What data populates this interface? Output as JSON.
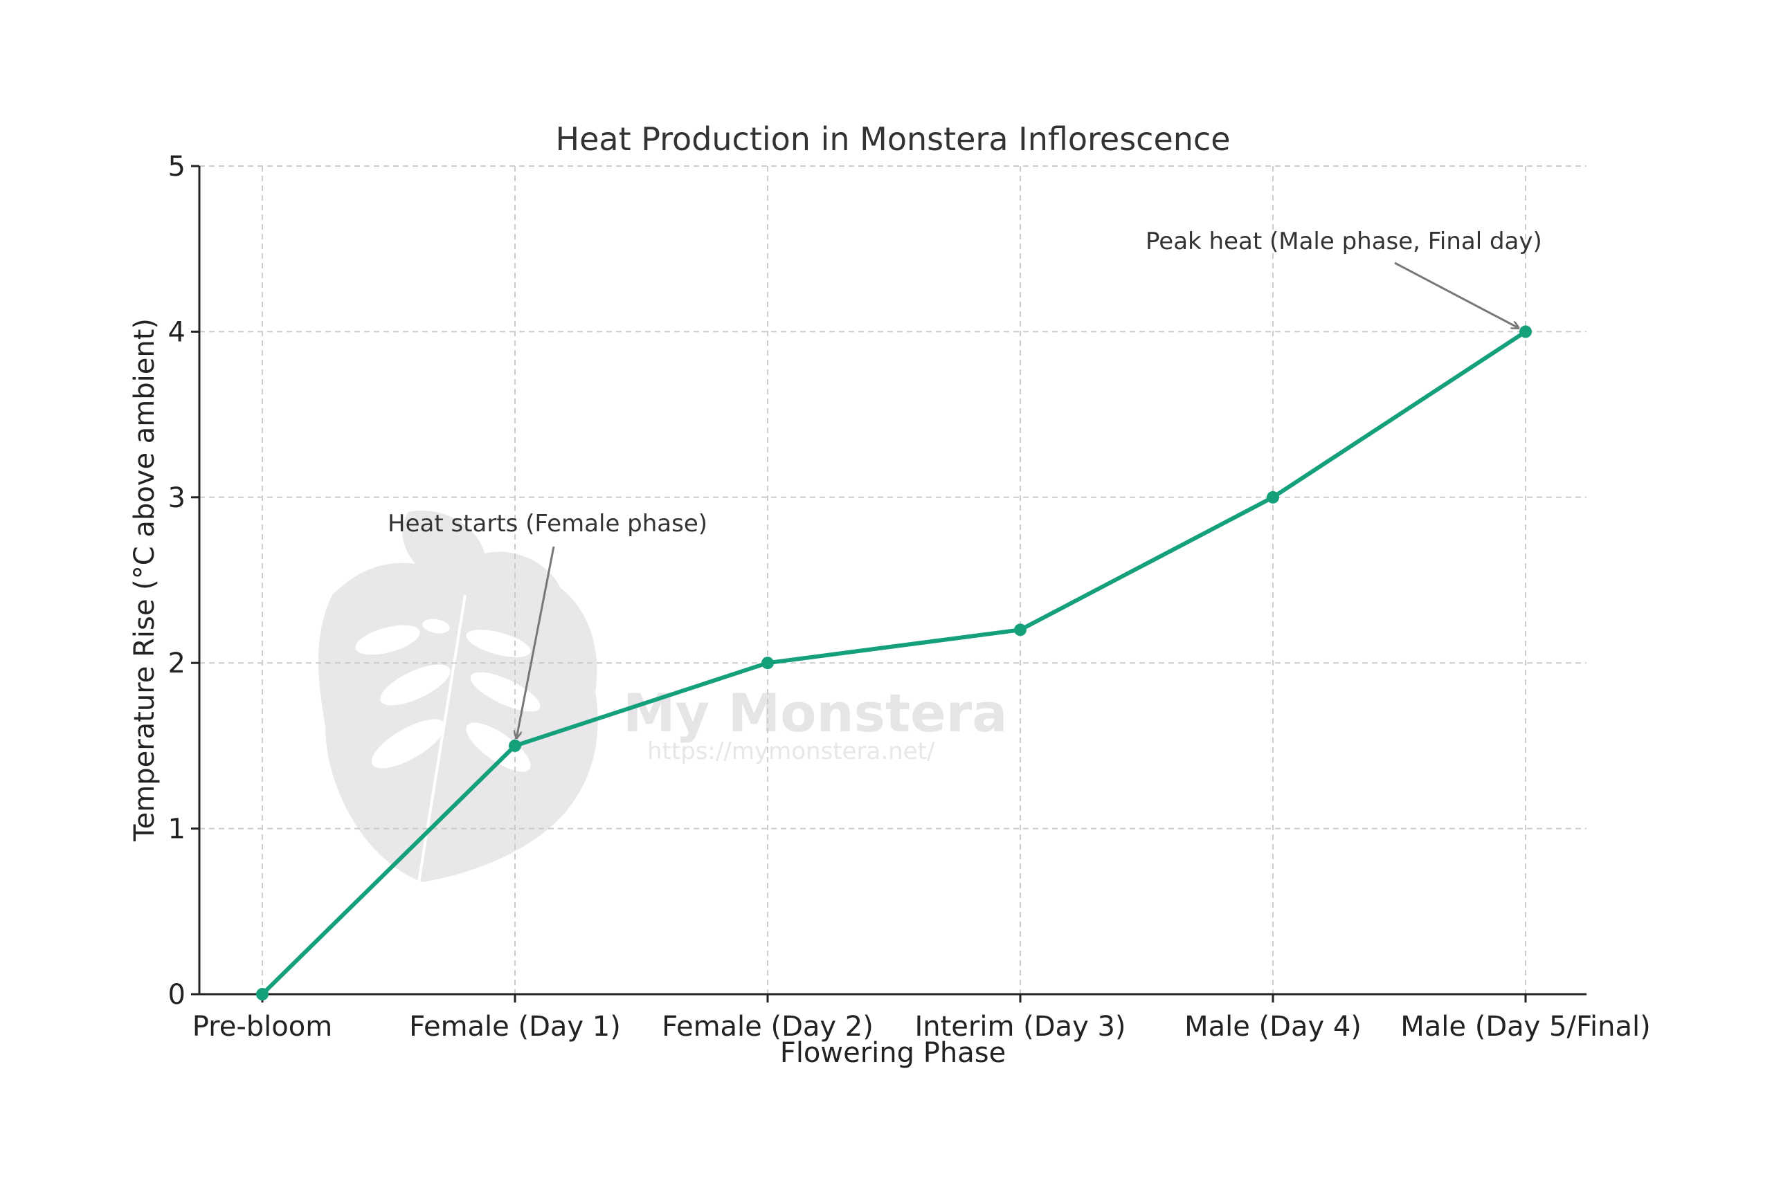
{
  "chart_data": {
    "type": "line",
    "title": "Heat Production in Monstera Inflorescence",
    "xlabel": "Flowering Phase",
    "ylabel": "Temperature Rise (°C above ambient)",
    "categories": [
      "Pre-bloom",
      "Female (Day 1)",
      "Female (Day 2)",
      "Interim (Day 3)",
      "Male (Day 4)",
      "Male (Day 5/Final)"
    ],
    "series": [
      {
        "values": [
          0,
          1.5,
          2.0,
          2.2,
          3.0,
          4.0
        ]
      }
    ],
    "ylim": [
      0,
      5
    ],
    "yticks": [
      "0",
      "1",
      "2",
      "3",
      "4",
      "5"
    ],
    "grid": true,
    "line_color": "#14a07a",
    "annotations": [
      {
        "text": "Heat starts (Female phase)",
        "category_index": 1,
        "value": 1.5
      },
      {
        "text": "Peak heat (Male phase, Final day)",
        "category_index": 5,
        "value": 4.0
      }
    ]
  },
  "watermark": {
    "name": "My Monstera",
    "url": "https://mymonstera.net/",
    "icon": "monstera-leaf-icon"
  }
}
